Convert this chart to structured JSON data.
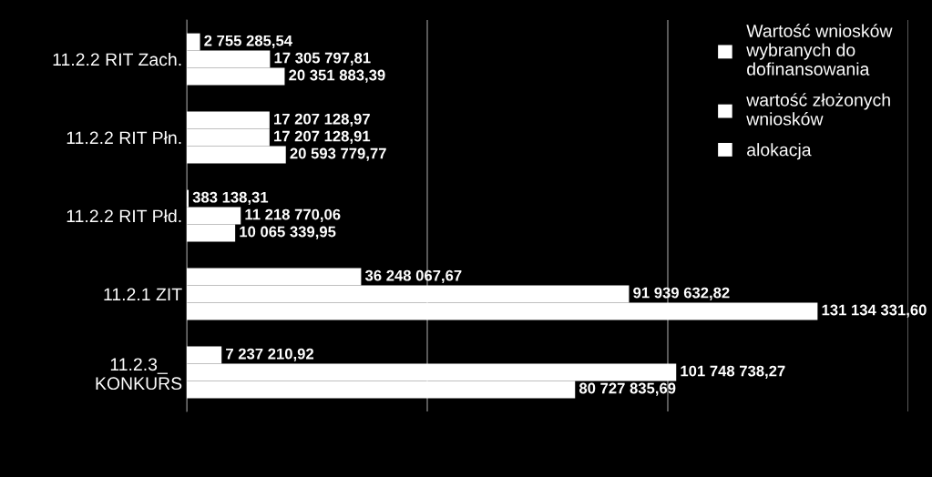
{
  "chart_data": {
    "type": "bar",
    "orientation": "horizontal",
    "categories": [
      "11.2.2 RIT Zach.",
      "11.2.2 RIT Płn.",
      "11.2.2 RIT Płd.",
      "11.2.1 ZIT",
      "11.2.3_\nKONKURS"
    ],
    "series": [
      {
        "name": "Wartość wniosków\nwybranych do\ndofinansowania",
        "color": "#ffffff",
        "values": [
          2755285.54,
          17207128.97,
          383138.31,
          36248067.67,
          7237210.92
        ],
        "value_labels": [
          "2 755 285,54",
          "17 207 128,97",
          "383 138,31",
          "36 248 067,67",
          "7 237 210,92"
        ]
      },
      {
        "name": "wartość złożonych\nwniosków",
        "color": "#ffffff",
        "values": [
          17305797.81,
          17207128.91,
          11218770.06,
          91939632.82,
          101748738.27
        ],
        "value_labels": [
          "17 305 797,81",
          "17 207 128,91",
          "11 218 770,06",
          "91 939 632,82",
          "101 748 738,27"
        ]
      },
      {
        "name": "alokacja",
        "color": "#ffffff",
        "values": [
          20351883.39,
          20593779.77,
          10065339.95,
          131134331.6,
          80727835.69
        ],
        "value_labels": [
          "20 351 883,39",
          "20 593 779,77",
          "10 065 339,95",
          "131 134 331,60",
          "80 727 835,69"
        ]
      }
    ],
    "xlim": [
      0,
      150000000
    ],
    "xticks": [
      {
        "value": 0,
        "label": null
      },
      {
        "value": 50000000,
        "label": null
      },
      {
        "value": 100000000,
        "label": null
      },
      {
        "value": 150000000,
        "label": null
      }
    ],
    "grid": "x",
    "legend": "top right",
    "tick_labels": "y"
  }
}
